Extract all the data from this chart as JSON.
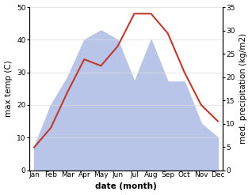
{
  "months": [
    "Jan",
    "Feb",
    "Mar",
    "Apr",
    "May",
    "Jun",
    "Jul",
    "Aug",
    "Sep",
    "Oct",
    "Nov",
    "Dec"
  ],
  "temperature": [
    7,
    13,
    24,
    34,
    32,
    38,
    48,
    48,
    42,
    30,
    20,
    15
  ],
  "precipitation": [
    5,
    14,
    20,
    28,
    30,
    28,
    19,
    28,
    19,
    19,
    10,
    7
  ],
  "temp_ylim": [
    0,
    50
  ],
  "precip_ylim": [
    0,
    35
  ],
  "temp_color": "#c0392b",
  "precip_fill_color": "#b8c4e8",
  "xlabel": "date (month)",
  "ylabel_left": "max temp (C)",
  "ylabel_right": "med. precipitation (kg/m2)",
  "axis_fontsize": 7.5,
  "tick_fontsize": 6.5,
  "line_width": 1.5
}
